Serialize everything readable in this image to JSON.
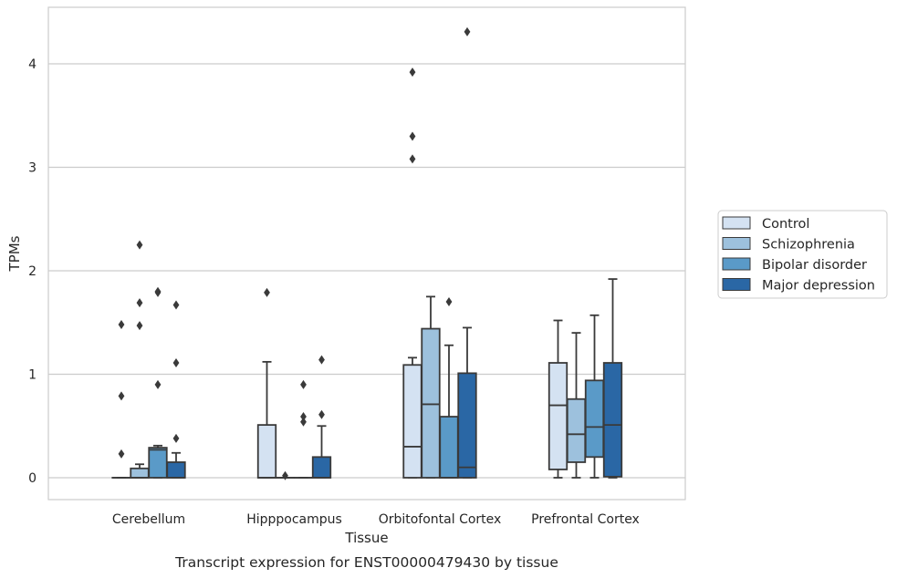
{
  "chart_data": {
    "type": "box",
    "caption": "Transcript expression for ENST00000479430 by tissue",
    "xlabel": "Tissue",
    "ylabel": "TPMs",
    "ylim": [
      -0.2,
      4.55
    ],
    "yticks": [
      0,
      1,
      2,
      3,
      4
    ],
    "grid": "horizontal",
    "legend_position": "right",
    "categories": [
      "Cerebellum",
      "Hipppocampus",
      "Orbitofontal Cortex",
      "Prefrontal Cortex"
    ],
    "series": [
      {
        "name": "Control",
        "color": "#d4e2f2",
        "boxes": [
          {
            "whisker_low": 0,
            "q1": 0,
            "median": 0,
            "q3": 0,
            "whisker_high": 0,
            "outliers": [
              0.23,
              0.79,
              1.48
            ]
          },
          {
            "whisker_low": 0,
            "q1": 0,
            "median": 0,
            "q3": 0.51,
            "whisker_high": 1.12,
            "outliers": [
              1.79
            ]
          },
          {
            "whisker_low": 0,
            "q1": 0,
            "median": 0.3,
            "q3": 1.09,
            "whisker_high": 1.16,
            "outliers": [
              3.08,
              3.3,
              3.92
            ]
          },
          {
            "whisker_low": 0,
            "q1": 0.08,
            "median": 0.7,
            "q3": 1.11,
            "whisker_high": 1.52,
            "outliers": []
          }
        ]
      },
      {
        "name": "Schizophrenia",
        "color": "#9dc1dd",
        "boxes": [
          {
            "whisker_low": 0,
            "q1": 0,
            "median": 0,
            "q3": 0.09,
            "whisker_high": 0.13,
            "outliers": [
              1.47,
              1.69,
              2.25
            ]
          },
          {
            "whisker_low": 0,
            "q1": 0,
            "median": 0,
            "q3": 0,
            "whisker_high": 0,
            "outliers": [
              0.02
            ]
          },
          {
            "whisker_low": 0,
            "q1": 0,
            "median": 0.71,
            "q3": 1.44,
            "whisker_high": 1.75,
            "outliers": []
          },
          {
            "whisker_low": 0,
            "q1": 0.15,
            "median": 0.42,
            "q3": 0.76,
            "whisker_high": 1.4,
            "outliers": []
          }
        ]
      },
      {
        "name": "Bipolar disorder",
        "color": "#5a9ac8",
        "boxes": [
          {
            "whisker_low": 0,
            "q1": 0,
            "median": 0.27,
            "q3": 0.29,
            "whisker_high": 0.31,
            "outliers": [
              0.9,
              1.79,
              1.8
            ]
          },
          {
            "whisker_low": 0,
            "q1": 0,
            "median": 0,
            "q3": 0,
            "whisker_high": 0,
            "outliers": [
              0.54,
              0.59,
              0.9
            ]
          },
          {
            "whisker_low": 0,
            "q1": 0,
            "median": 0,
            "q3": 0.59,
            "whisker_high": 1.28,
            "outliers": [
              1.7
            ]
          },
          {
            "whisker_low": 0,
            "q1": 0.2,
            "median": 0.49,
            "q3": 0.94,
            "whisker_high": 1.57,
            "outliers": []
          }
        ]
      },
      {
        "name": "Major depression",
        "color": "#2a67a5",
        "boxes": [
          {
            "whisker_low": 0,
            "q1": 0,
            "median": 0,
            "q3": 0.15,
            "whisker_high": 0.24,
            "outliers": [
              0.38,
              1.11,
              1.67
            ]
          },
          {
            "whisker_low": 0,
            "q1": 0,
            "median": 0,
            "q3": 0.2,
            "whisker_high": 0.5,
            "outliers": [
              0.61,
              1.14
            ]
          },
          {
            "whisker_low": 0,
            "q1": 0,
            "median": 0.1,
            "q3": 1.01,
            "whisker_high": 1.45,
            "outliers": [
              4.31
            ]
          },
          {
            "whisker_low": 0,
            "q1": 0.01,
            "median": 0.51,
            "q3": 1.11,
            "whisker_high": 1.92,
            "outliers": []
          }
        ]
      }
    ]
  }
}
